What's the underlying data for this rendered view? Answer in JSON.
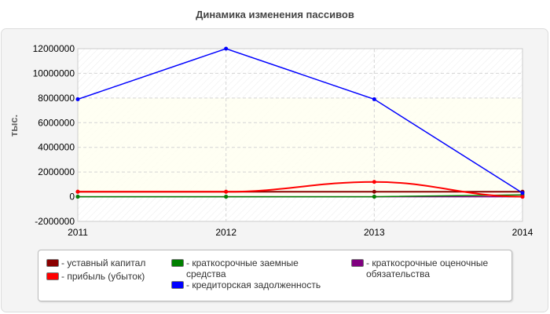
{
  "chart_data": {
    "type": "line",
    "title": "Динамика изменения пассивов",
    "ylabel": "тыс.",
    "xlabel": "",
    "categories": [
      "2011",
      "2012",
      "2013",
      "2014"
    ],
    "ylim": [
      -2000000,
      12000000
    ],
    "yticks": [
      12000000,
      10000000,
      8000000,
      6000000,
      4000000,
      2000000,
      0,
      -2000000
    ],
    "grid": true,
    "legend_position": "bottom",
    "series": [
      {
        "name": "уставный капитал",
        "color": "#8b0000",
        "values": [
          400000,
          400000,
          400000,
          400000
        ]
      },
      {
        "name": "прибыль (убыток)",
        "color": "#ff0000",
        "values": [
          400000,
          400000,
          1200000,
          0
        ]
      },
      {
        "name": "краткосрочные заемные средства",
        "color": "#008000",
        "values": [
          0,
          0,
          0,
          150000
        ]
      },
      {
        "name": "кредиторская задолженность",
        "color": "#0000ff",
        "values": [
          7900000,
          12000000,
          7900000,
          300000
        ]
      },
      {
        "name": "краткосрочные оценочные обязательства",
        "color": "#800080",
        "values": [
          0,
          0,
          0,
          0
        ]
      }
    ]
  }
}
